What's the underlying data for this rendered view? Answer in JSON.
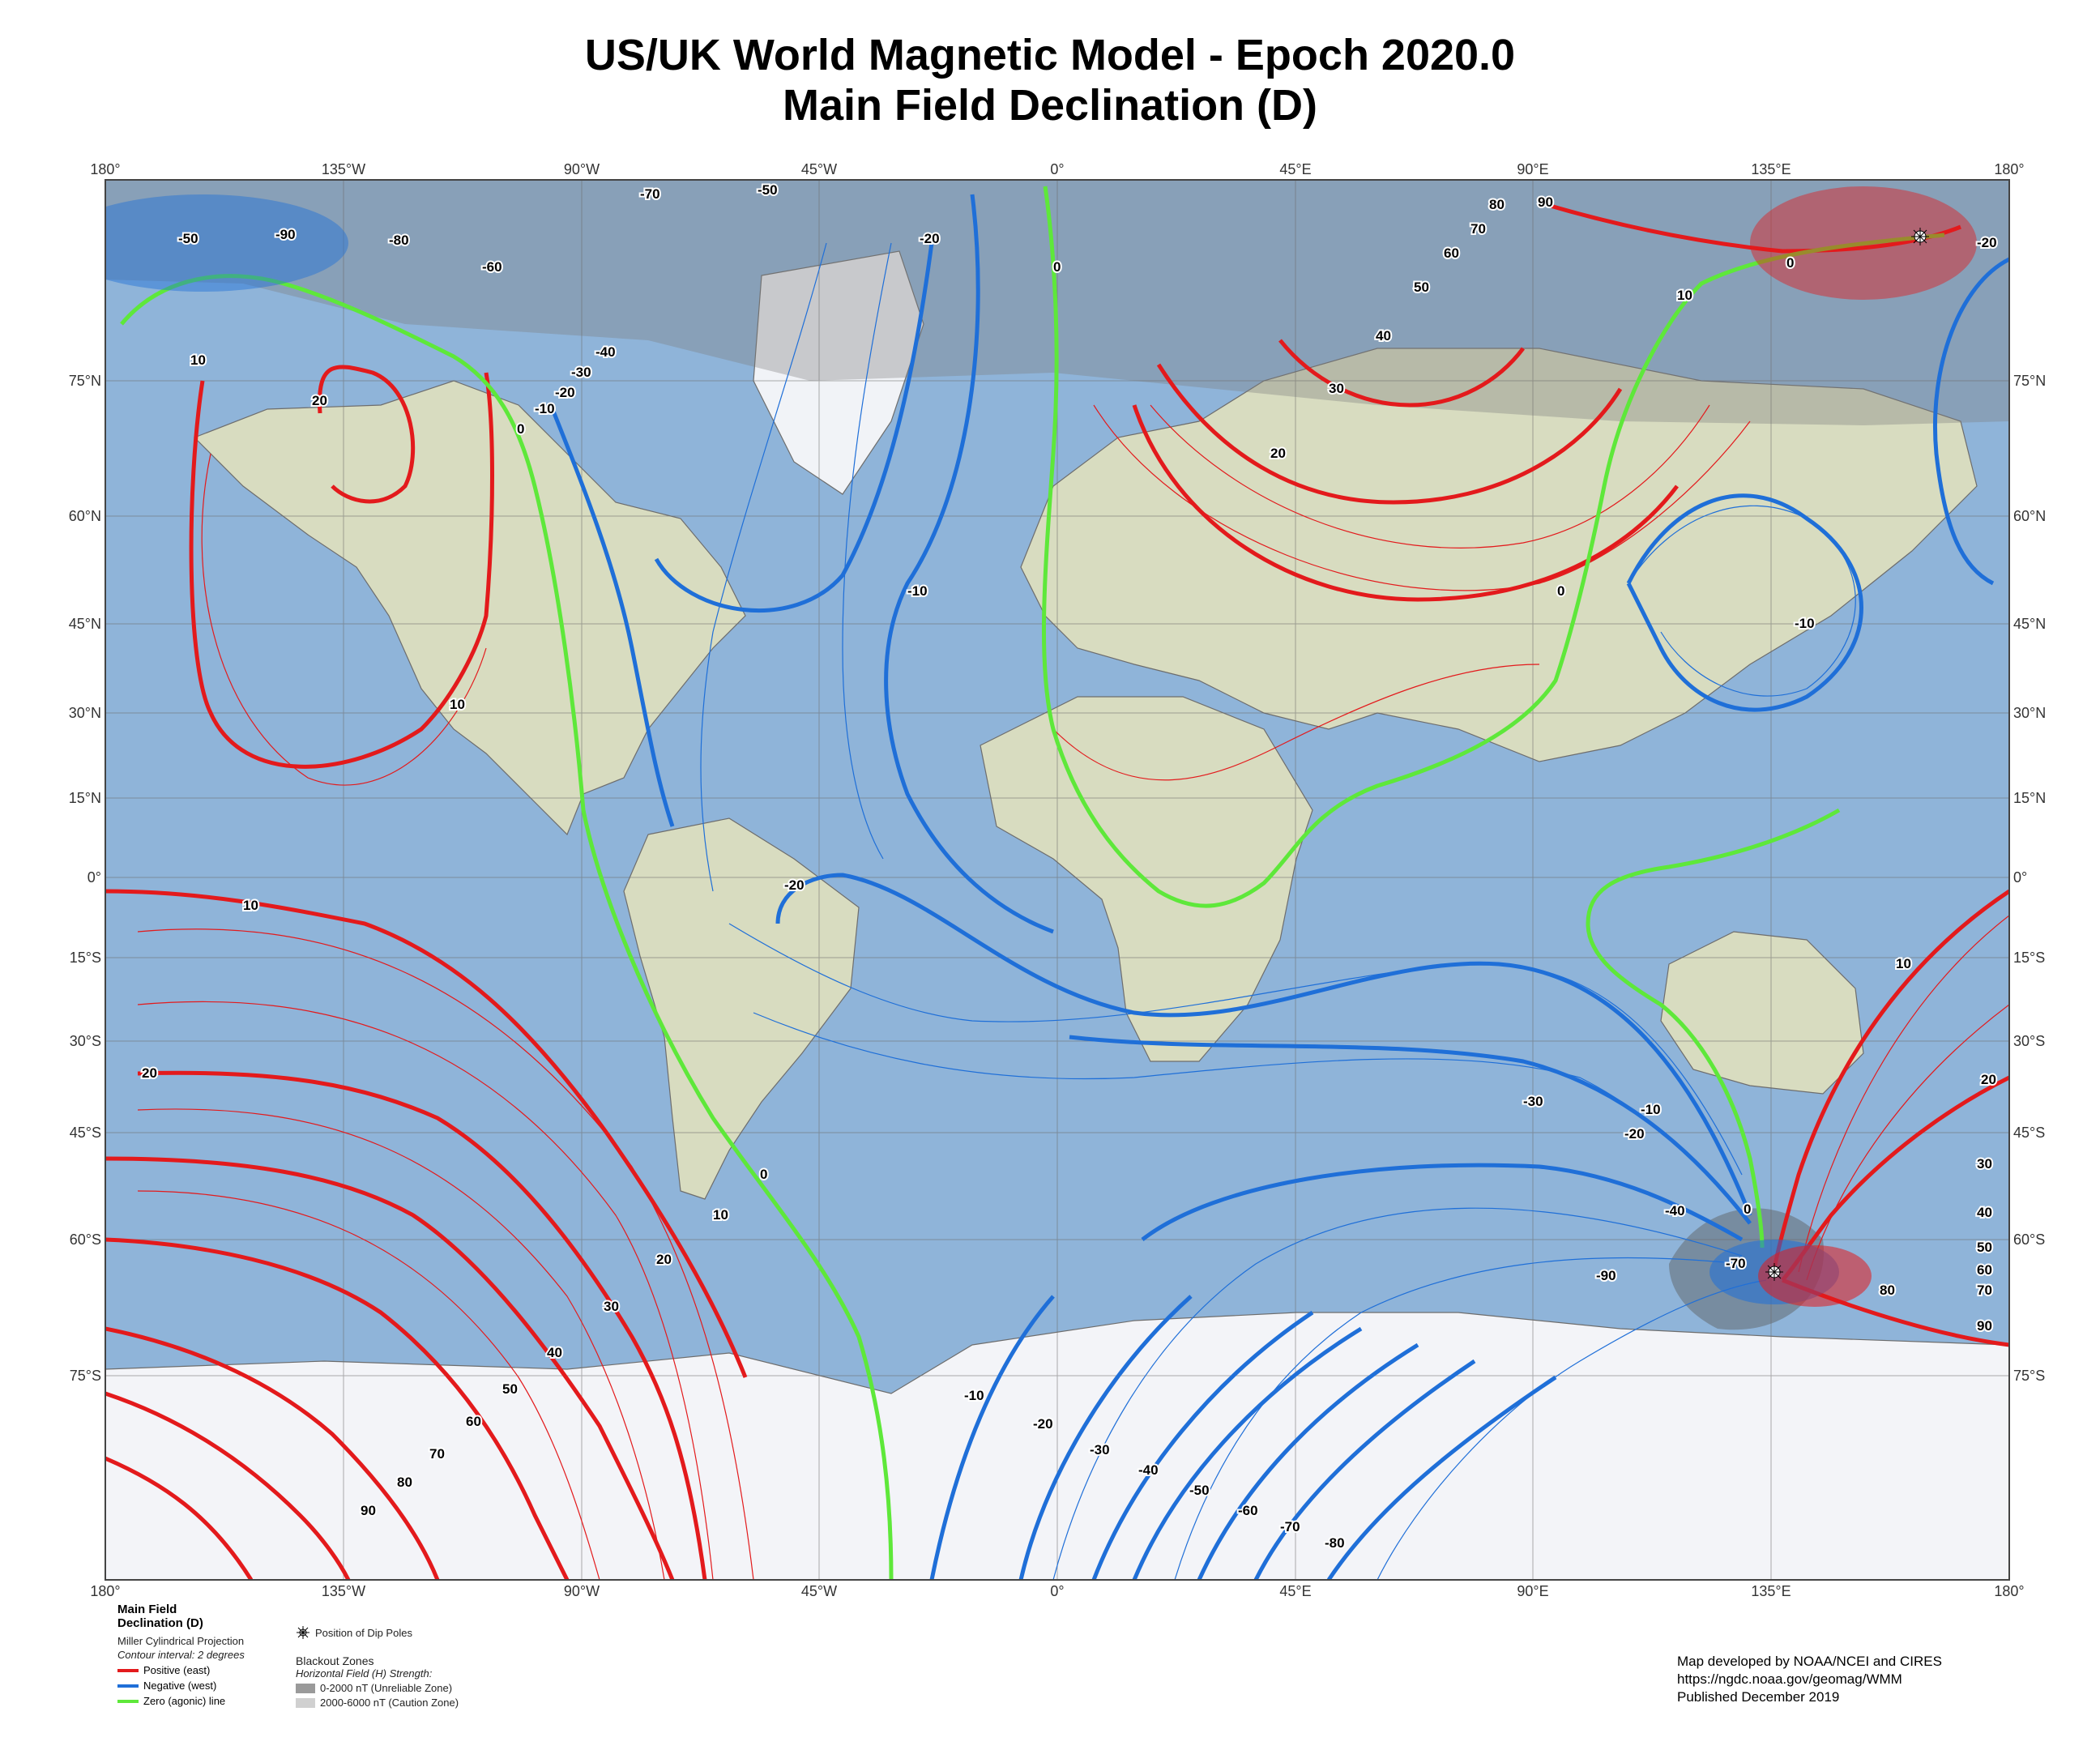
{
  "title_line1": "US/UK World Magnetic Model - Epoch 2020.0",
  "title_line2": "Main Field Declination (D)",
  "lon_ticks": [
    "180°",
    "135°W",
    "90°W",
    "45°W",
    "0°",
    "45°E",
    "90°E",
    "135°E",
    "180°"
  ],
  "lat_ticks": [
    "75°N",
    "60°N",
    "45°N",
    "30°N",
    "15°N",
    "0°",
    "15°S",
    "30°S",
    "45°S",
    "60°S",
    "75°S"
  ],
  "contour_labels": [
    "-50",
    "-90",
    "-80",
    "-60",
    "-70",
    "-50",
    "-20",
    "0",
    "80",
    "90",
    "70",
    "60",
    "50",
    "40",
    "30",
    "20",
    "10",
    "0",
    "-20",
    "10",
    "20",
    "0",
    "-10",
    "-20",
    "-30",
    "-40",
    "-10",
    "0",
    "-10",
    "10",
    "-20",
    "10",
    "20",
    "10",
    "0",
    "-10",
    "-20",
    "-30",
    "-40",
    "-70",
    "-90",
    "0",
    "10",
    "20",
    "30",
    "40",
    "50",
    "60",
    "70",
    "80",
    "90",
    "-10",
    "-20",
    "-30",
    "-40",
    "-50",
    "-60",
    "-70",
    "-80",
    "20",
    "30",
    "40",
    "50",
    "60",
    "70",
    "80",
    "90"
  ],
  "colors": {
    "positive": "#e31a1c",
    "negative": "#1f6fd8",
    "zero": "#5ee83a",
    "ocean": "#8fb4d9",
    "land": "#d8dcc0"
  },
  "legend": {
    "title": "Main Field Declination (D)",
    "projection": "Miller Cylindrical Projection",
    "interval": "Contour interval: 2 degrees",
    "positive": "Positive (east)",
    "negative": "Negative (west)",
    "zero": "Zero (agonic) line",
    "dip_poles": "Position of Dip Poles",
    "blackout_title": "Blackout Zones",
    "blackout_sub": "Horizontal Field (H) Strength:",
    "zone1": "0-2000 nT (Unreliable Zone)",
    "zone2": "2000-6000 nT (Caution Zone)"
  },
  "credits": {
    "line1": "Map developed by NOAA/NCEI and CIRES",
    "line2": "https://ngdc.noaa.gov/geomag/WMM",
    "line3": "Published December 2019"
  }
}
